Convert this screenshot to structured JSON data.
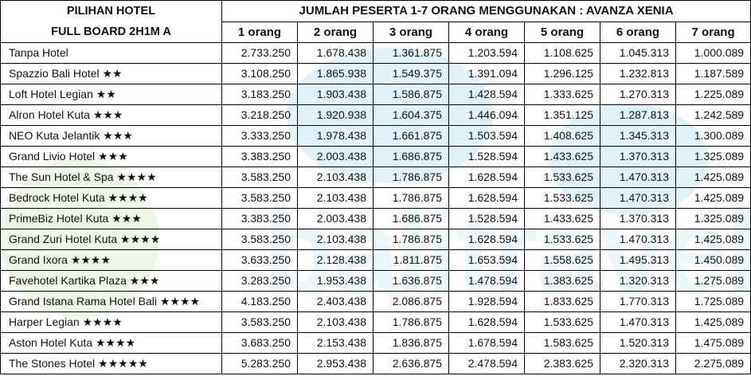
{
  "table": {
    "left_header_line1": "PILIHAN HOTEL",
    "left_header_line2": "FULL BOARD 2H1M A",
    "group_header": "JUMLAH PESERTA 1-7 ORANG MENGGUNAKAN : AVANZA XENIA",
    "columns": [
      "1 orang",
      "2 orang",
      "3 orang",
      "4 orang",
      "5 orang",
      "6 orang",
      "7 orang"
    ],
    "rows": [
      {
        "hotel": "Tanpa Hotel",
        "prices": [
          "2.733.250",
          "1.678.438",
          "1.361.875",
          "1.203.594",
          "1.108.625",
          "1.045.313",
          "1.000.089"
        ]
      },
      {
        "hotel": "Spazzio Bali Hotel ★★",
        "prices": [
          "3.108.250",
          "1.865.938",
          "1.549.375",
          "1.391.094",
          "1.296.125",
          "1.232.813",
          "1.187.589"
        ]
      },
      {
        "hotel": "Loft Hotel Legian ★★",
        "prices": [
          "3.183.250",
          "1.903.438",
          "1.586.875",
          "1.428.594",
          "1.333.625",
          "1.270.313",
          "1.225.089"
        ]
      },
      {
        "hotel": "Alron Hotel Kuta ★★★",
        "prices": [
          "3.218.250",
          "1.920.938",
          "1.604.375",
          "1.446.094",
          "1.351.125",
          "1.287.813",
          "1.242.589"
        ]
      },
      {
        "hotel": "NEO Kuta Jelantik ★★★",
        "prices": [
          "3.333.250",
          "1.978.438",
          "1.661.875",
          "1.503.594",
          "1.408.625",
          "1.345.313",
          "1.300.089"
        ]
      },
      {
        "hotel": "Grand Livio Hotel ★★★",
        "prices": [
          "3.383.250",
          "2.003.438",
          "1.686.875",
          "1.528.594",
          "1.433.625",
          "1.370.313",
          "1.325.089"
        ]
      },
      {
        "hotel": "The Sun Hotel & Spa ★★★★",
        "prices": [
          "3.583.250",
          "2.103.438",
          "1.786.875",
          "1.628.594",
          "1.533.625",
          "1.470.313",
          "1.425.089"
        ]
      },
      {
        "hotel": "Bedrock Hotel Kuta ★★★★",
        "prices": [
          "3.583.250",
          "2.103.438",
          "1.786.875",
          "1.628.594",
          "1.533.625",
          "1.470.313",
          "1.425.089"
        ]
      },
      {
        "hotel": "PrimeBiz Hotel Kuta ★★★",
        "prices": [
          "3.383.250",
          "2.003.438",
          "1.686.875",
          "1.528.594",
          "1.433.625",
          "1.370.313",
          "1.325.089"
        ]
      },
      {
        "hotel": "Grand Zuri Hotel Kuta ★★★★",
        "prices": [
          "3.583.250",
          "2.103.438",
          "1.786.875",
          "1.628.594",
          "1.533.625",
          "1.470.313",
          "1.425.089"
        ]
      },
      {
        "hotel": "Grand Ixora ★★★★",
        "prices": [
          "3.633.250",
          "2.128.438",
          "1.811.875",
          "1.653.594",
          "1.558.625",
          "1.495.313",
          "1.450.089"
        ]
      },
      {
        "hotel": "Favehotel Kartika Plaza ★★★",
        "prices": [
          "3.283.250",
          "1.953.438",
          "1.636.875",
          "1.478.594",
          "1.383.625",
          "1.320.313",
          "1.275.089"
        ]
      },
      {
        "hotel": "Grand Istana Rama Hotel Bali ★★★★",
        "prices": [
          "4.183.250",
          "2.403.438",
          "2.086.875",
          "1.928.594",
          "1.833.625",
          "1.770.313",
          "1.725.089"
        ]
      },
      {
        "hotel": "Harper Legian ★★★★",
        "prices": [
          "3.583.250",
          "2.103.438",
          "1.786.875",
          "1.628.594",
          "1.533.625",
          "1.470.313",
          "1.425.089"
        ]
      },
      {
        "hotel": "Aston Hotel Kuta ★★★★",
        "prices": [
          "3.683.250",
          "2.153.438",
          "1.836.875",
          "1.678.594",
          "1.583.625",
          "1.520.313",
          "1.475.089"
        ]
      },
      {
        "hotel": "The Stones Hotel ★★★★★",
        "prices": [
          "5.283.250",
          "2.953.438",
          "2.636.875",
          "2.478.594",
          "2.383.625",
          "2.320.313",
          "2.275.089"
        ]
      }
    ]
  },
  "watermark": {
    "text": "balitravel.co.id",
    "colors": {
      "green": "#7cc242",
      "blue": "#1aa0d8"
    }
  }
}
